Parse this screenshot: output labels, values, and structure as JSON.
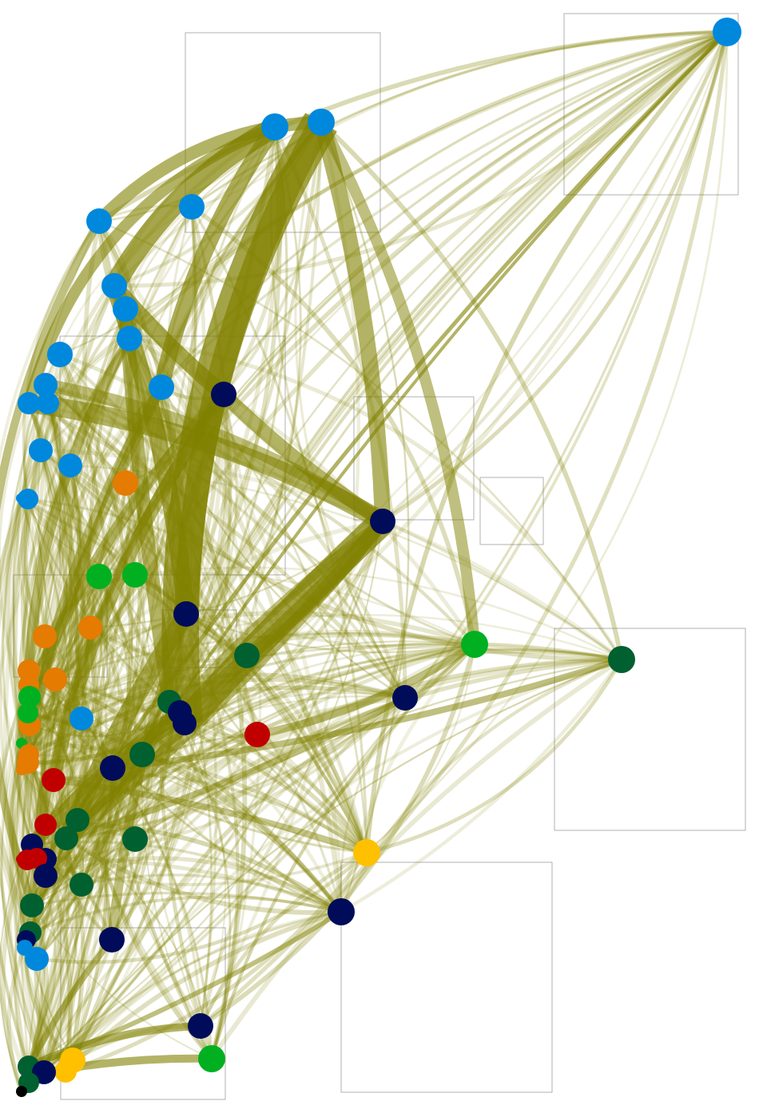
{
  "colors": {
    "edge": "#808000",
    "frame": "#b0b0b0",
    "background": "#ffffff",
    "blue": "#0088dd",
    "navy": "#000c5a",
    "darkgreen": "#006030",
    "green": "#00b020",
    "orange": "#e57b00",
    "red": "#c00000",
    "yellow": "#ffc000",
    "black": "#000000"
  },
  "graph": {
    "type": "network",
    "node_count": 94,
    "edge_style": "curved, semi-transparent, width proportional to weight",
    "labels_visible": false
  }
}
